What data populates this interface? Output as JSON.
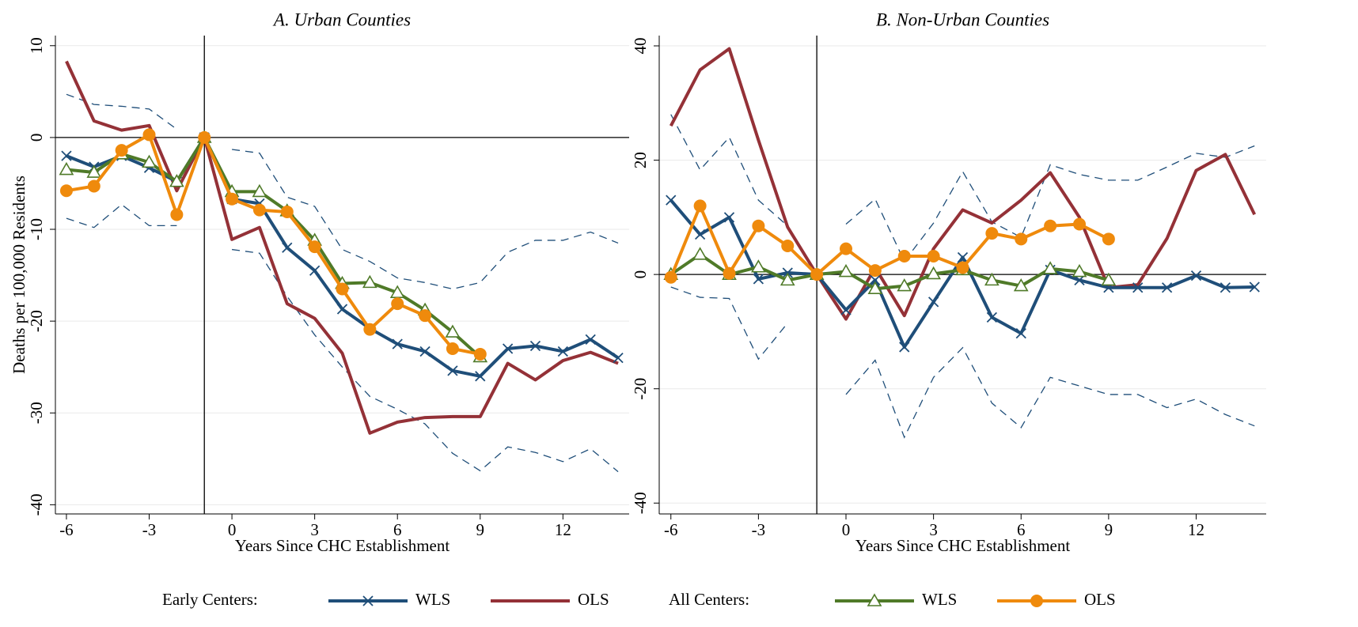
{
  "chart_data": [
    {
      "type": "line",
      "title": "A. Urban Counties",
      "x_label": "Years Since CHC Establishment",
      "y_label": "Deaths per 100,000 Residents",
      "xlim": [
        -6.4,
        14.4
      ],
      "ylim": [
        -41,
        11.1
      ],
      "xticks": [
        -6,
        -3,
        0,
        3,
        6,
        9,
        12
      ],
      "yticks": [
        -40,
        -30,
        -20,
        -10,
        0,
        10
      ],
      "event_x": -1,
      "series": [
        {
          "x": [
            -6,
            -5,
            -4,
            -3,
            -2,
            -1,
            0,
            1,
            2,
            3,
            4,
            5,
            6,
            7,
            8,
            9,
            10,
            11,
            12,
            13,
            14
          ],
          "values": [
            -2,
            -3.2,
            -2,
            -3.3,
            -4.8,
            0,
            -6.7,
            -7.2,
            -12,
            -14.5,
            -18.7,
            -20.8,
            -22.5,
            -23.3,
            -25.4,
            -26,
            -23,
            -22.7,
            -23.3,
            -22,
            -24
          ]
        },
        {
          "x": [
            -6,
            -5,
            -4,
            -3,
            -2,
            -1,
            0,
            1,
            2,
            3,
            4,
            5,
            6,
            7,
            8,
            9,
            10,
            11,
            12,
            13,
            14
          ],
          "values": [
            8.3,
            1.8,
            0.8,
            1.3,
            -5.8,
            0,
            -11.1,
            -9.8,
            -18.1,
            -19.7,
            -23.5,
            -32.2,
            -31,
            -30.5,
            -30.4,
            -30.4,
            -24.6,
            -26.4,
            -24.3,
            -23.4,
            -24.6
          ]
        },
        {
          "x": [
            -6,
            -5,
            -4,
            -3,
            -2,
            -1,
            0,
            1,
            2,
            3,
            4,
            5,
            6,
            7,
            8,
            9
          ],
          "values": [
            -3.5,
            -3.8,
            -1.8,
            -2.7,
            -4.8,
            0,
            -5.9,
            -5.9,
            -8,
            -11.2,
            -15.9,
            -15.8,
            -16.9,
            -18.8,
            -21.2,
            -23.9
          ]
        },
        {
          "x": [
            -6,
            -5,
            -4,
            -3,
            -2,
            -1,
            0,
            1,
            2,
            3,
            4,
            5,
            6,
            7,
            8,
            9
          ],
          "values": [
            -5.8,
            -5.3,
            -1.4,
            0.3,
            -8.4,
            0,
            -6.7,
            -7.9,
            -8.1,
            -11.9,
            -16.5,
            -20.9,
            -18.1,
            -19.4,
            -23,
            -23.6
          ]
        }
      ],
      "ci": {
        "color": "#1f4e79",
        "x": [
          -6,
          -5,
          -4,
          -3,
          -2,
          -1,
          0,
          1,
          2,
          3,
          4,
          5,
          6,
          7,
          8,
          9,
          10,
          11,
          12,
          13,
          14
        ],
        "upper": [
          4.7,
          3.6,
          3.4,
          3.1,
          0.9,
          null,
          -1.3,
          -1.7,
          -6.5,
          -7.5,
          -12.2,
          -13.5,
          -15.3,
          -15.8,
          -16.5,
          -15.8,
          -12.5,
          -11.2,
          -11.2,
          -10.3,
          -11.5
        ],
        "lower": [
          -8.8,
          -9.8,
          -7.3,
          -9.6,
          -9.6,
          null,
          -12.2,
          -12.6,
          -17.3,
          -21.5,
          -25,
          -28.2,
          -29.6,
          -31.2,
          -34.4,
          -36.3,
          -33.7,
          -34.3,
          -35.3,
          -33.9,
          -36.4
        ]
      }
    },
    {
      "type": "line",
      "title": "B. Non-Urban Counties",
      "x_label": "Years Since CHC Establishment",
      "xlim": [
        -6.4,
        14.4
      ],
      "ylim": [
        -41.9,
        41.8
      ],
      "xticks": [
        -6,
        -3,
        0,
        3,
        6,
        9,
        12
      ],
      "yticks": [
        -40,
        -20,
        0,
        20,
        40
      ],
      "event_x": -1,
      "series": [
        {
          "x": [
            -6,
            -5,
            -4,
            -3,
            -2,
            -1,
            0,
            1,
            2,
            3,
            4,
            5,
            6,
            7,
            8,
            9,
            10,
            11,
            12,
            13,
            14
          ],
          "values": [
            13,
            7,
            10,
            -0.8,
            0.3,
            0,
            -6.2,
            -1,
            -12.7,
            -4.8,
            3,
            -7.5,
            -10.3,
            0.8,
            -1,
            -2.3,
            -2.3,
            -2.3,
            -0.2,
            -2.3,
            -2.2
          ]
        },
        {
          "x": [
            -6,
            -5,
            -4,
            -3,
            -2,
            -1,
            0,
            1,
            2,
            3,
            4,
            5,
            6,
            7,
            8,
            9,
            10,
            11,
            12,
            13,
            14
          ],
          "values": [
            26,
            35.8,
            39.5,
            23.5,
            8.3,
            0,
            -7.8,
            1.2,
            -7.2,
            4.5,
            11.3,
            9,
            13,
            17.8,
            10,
            -2.3,
            -1.8,
            6.3,
            18.2,
            21,
            10.5
          ]
        },
        {
          "x": [
            -6,
            -5,
            -4,
            -3,
            -2,
            -1,
            0,
            1,
            2,
            3,
            4,
            5,
            6,
            7,
            8,
            9
          ],
          "values": [
            0,
            3.5,
            0,
            1.3,
            -1,
            0,
            0.5,
            -2.5,
            -2,
            0.1,
            0.8,
            -1,
            -2,
            1,
            0.5,
            -1
          ]
        },
        {
          "x": [
            -6,
            -5,
            -4,
            -3,
            -2,
            -1,
            0,
            1,
            2,
            3,
            4,
            5,
            6,
            7,
            8,
            9
          ],
          "values": [
            -0.5,
            12,
            0.2,
            8.5,
            5,
            0,
            4.5,
            0.7,
            3.2,
            3.2,
            1.2,
            7.2,
            6.2,
            8.5,
            8.8,
            6.2
          ]
        }
      ],
      "ci": {
        "color": "#1f4e79",
        "x": [
          -6,
          -5,
          -4,
          -3,
          -2,
          -1,
          0,
          1,
          2,
          3,
          4,
          5,
          6,
          7,
          8,
          9,
          10,
          11,
          12,
          13,
          14
        ],
        "upper": [
          28,
          18.3,
          24,
          13,
          8.5,
          null,
          8.8,
          13.2,
          2.3,
          9,
          18,
          9.2,
          6.5,
          19.2,
          17.5,
          16.5,
          16.5,
          18.8,
          21.2,
          20.5,
          22.5
        ],
        "lower": [
          -2.2,
          -4,
          -4.2,
          -14.8,
          -8.5,
          null,
          -21,
          -15,
          -28.5,
          -18,
          -12.8,
          -22.5,
          -26.8,
          -18,
          -19.5,
          -21,
          -21,
          -23.3,
          -21.8,
          -24.5,
          -26.5
        ]
      }
    }
  ],
  "legend": [
    {
      "title": "Early Centers:",
      "series": [
        {
          "name": "WLS",
          "color": "#1f4e79",
          "marker": "x"
        },
        {
          "name": "OLS",
          "color": "#943137",
          "marker": "none"
        }
      ]
    },
    {
      "title": "All Centers:",
      "series": [
        {
          "name": "WLS",
          "color": "#4f7a28",
          "marker": "triangle"
        },
        {
          "name": "OLS",
          "color": "#ef8a0c",
          "marker": "circle"
        }
      ]
    }
  ]
}
